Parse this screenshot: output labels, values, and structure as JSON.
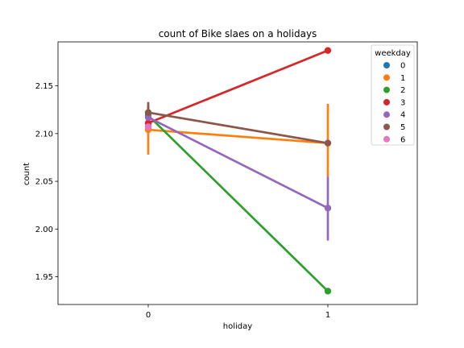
{
  "chart_data": {
    "type": "line",
    "title": "count of Bike slaes on a holidays",
    "xlabel": "holiday",
    "ylabel": "count",
    "categories": [
      "0",
      "1"
    ],
    "ylim": [
      1.921,
      2.196
    ],
    "yticks": [
      1.95,
      2.0,
      2.05,
      2.1,
      2.15
    ],
    "ytick_labels": [
      "1.95",
      "2.00",
      "2.05",
      "2.10",
      "2.15"
    ],
    "grid": false,
    "legend": {
      "title": "weekday",
      "position": "top-right"
    },
    "series": [
      {
        "name": "0",
        "color": "#1f77b4",
        "values": [
          2.107,
          null
        ],
        "ci": [
          [
            2.1,
            2.114
          ],
          null
        ]
      },
      {
        "name": "1",
        "color": "#ff7f0e",
        "values": [
          2.104,
          2.09
        ],
        "ci": [
          [
            2.078,
            2.13
          ],
          [
            2.055,
            2.131
          ]
        ]
      },
      {
        "name": "2",
        "color": "#2ca02c",
        "values": [
          2.119,
          1.935
        ],
        "ci": [
          [
            2.108,
            2.128
          ],
          null
        ]
      },
      {
        "name": "3",
        "color": "#d62728",
        "values": [
          2.111,
          2.187
        ],
        "ci": [
          [
            2.102,
            2.12
          ],
          null
        ]
      },
      {
        "name": "4",
        "color": "#9467bd",
        "values": [
          2.117,
          2.022
        ],
        "ci": [
          [
            2.104,
            2.127
          ],
          [
            1.988,
            2.055
          ]
        ]
      },
      {
        "name": "5",
        "color": "#8c564b",
        "values": [
          2.122,
          2.09
        ],
        "ci": [
          [
            2.103,
            2.133
          ],
          [
            2.087,
            2.093
          ]
        ]
      },
      {
        "name": "6",
        "color": "#e377c2",
        "values": [
          2.107,
          null
        ],
        "ci": [
          [
            2.1,
            2.118
          ],
          null
        ]
      }
    ]
  }
}
